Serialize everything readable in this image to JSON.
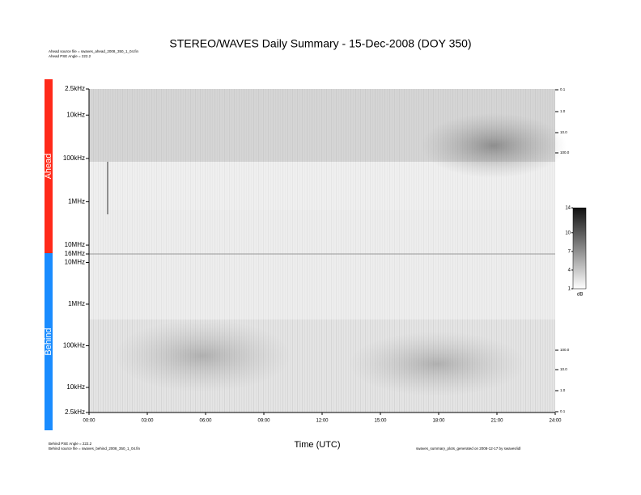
{
  "chart_data": [
    {
      "type": "spectrogram",
      "title": "STEREO/WAVES Daily Summary - 15-Dec-2008 (DOY 350)",
      "ylabel": "Ahead",
      "color": "#ff2a1a",
      "log_y": true,
      "notes": [
        "Ahead source file = swaves_ahead_2008_350_1_04.fin",
        "Ahead PSE Angle = 222.2"
      ],
      "ylim": [
        2500,
        16000000
      ],
      "yticks": [
        {
          "value": 2500,
          "label": "2.5kHz"
        },
        {
          "value": 10000,
          "label": "10kHz"
        },
        {
          "value": 100000,
          "label": "100kHz"
        },
        {
          "value": 1000000,
          "label": "1MHz"
        },
        {
          "value": 10000000,
          "label": "10MHz"
        },
        {
          "value": 16000000,
          "label": "16MHz"
        }
      ],
      "right_labels": [
        "0.1",
        "1.0",
        "10.0",
        "100.0"
      ],
      "colorbar": {
        "lim": [
          1,
          14
        ],
        "ticks": [
          1,
          4,
          7,
          10,
          14
        ],
        "label": "dB"
      }
    },
    {
      "type": "spectrogram",
      "ylabel": "Behind",
      "color": "#1a8cff",
      "log_y": true,
      "notes": [
        "Behind PSE Angle = 222.2",
        "Behind source file = swaves_behind_2008_350_1_04.fin",
        "swaves_summary_plots_generated on 2008-12-17 by swaves/idl"
      ],
      "ylim": [
        16000000,
        2500
      ],
      "yticks": [
        {
          "value": 10000000,
          "label": "10MHz"
        },
        {
          "value": 1000000,
          "label": "1MHz"
        },
        {
          "value": 100000,
          "label": "100kHz"
        },
        {
          "value": 10000,
          "label": "10kHz"
        },
        {
          "value": 2500,
          "label": "2.5kHz"
        }
      ],
      "right_labels": [
        "100.0",
        "10.0",
        "1.0",
        "0.1"
      ],
      "xlabel": "Time (UTC)",
      "xlim": [
        0,
        24
      ],
      "xticks": [
        {
          "value": 0,
          "label": "00:00"
        },
        {
          "value": 3,
          "label": "03:00"
        },
        {
          "value": 6,
          "label": "06:00"
        },
        {
          "value": 9,
          "label": "09:00"
        },
        {
          "value": 12,
          "label": "12:00"
        },
        {
          "value": 15,
          "label": "15:00"
        },
        {
          "value": 18,
          "label": "18:00"
        },
        {
          "value": 21,
          "label": "21:00"
        },
        {
          "value": 24,
          "label": "24:00"
        }
      ]
    }
  ]
}
